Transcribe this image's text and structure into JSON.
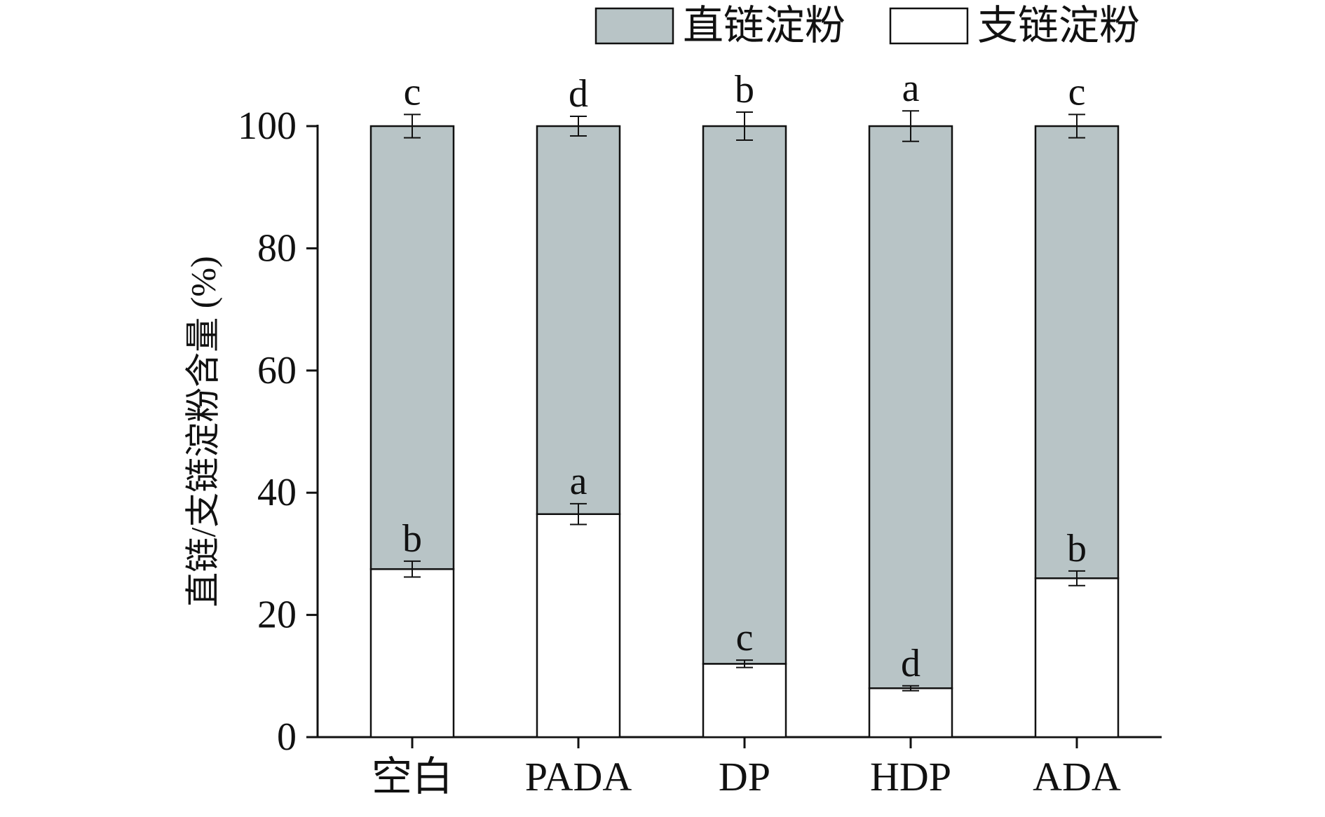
{
  "chart_data": {
    "type": "bar",
    "stacked": true,
    "categories": [
      "空白",
      "PADA",
      "DP",
      "HDP",
      "ADA"
    ],
    "series": [
      {
        "name": "支链淀粉",
        "values": [
          27.5,
          36.5,
          12.0,
          8.0,
          26.0
        ],
        "errors": [
          1.3,
          1.7,
          0.6,
          0.4,
          1.2
        ],
        "significance": [
          "b",
          "a",
          "c",
          "d",
          "b"
        ],
        "color": "#ffffff"
      },
      {
        "name": "直链淀粉",
        "values": [
          72.5,
          63.5,
          88.0,
          92.0,
          74.0
        ],
        "errors": [
          1.9,
          1.6,
          2.3,
          2.5,
          1.9
        ],
        "significance": [
          "c",
          "d",
          "b",
          "a",
          "c"
        ],
        "color": "#b8c4c6"
      }
    ],
    "legend_order": [
      "直链淀粉",
      "支链淀粉"
    ],
    "title": "",
    "xlabel": "",
    "ylabel": "直链/支链淀粉含量 (%)",
    "ylim": [
      0,
      100
    ],
    "yticks": [
      0,
      20,
      40,
      60,
      80,
      100
    ],
    "grid": false,
    "legend_position": "top-right"
  },
  "colors": {
    "amylose": "#b8c4c6",
    "amylopectin": "#ffffff",
    "stroke": "#111111"
  }
}
